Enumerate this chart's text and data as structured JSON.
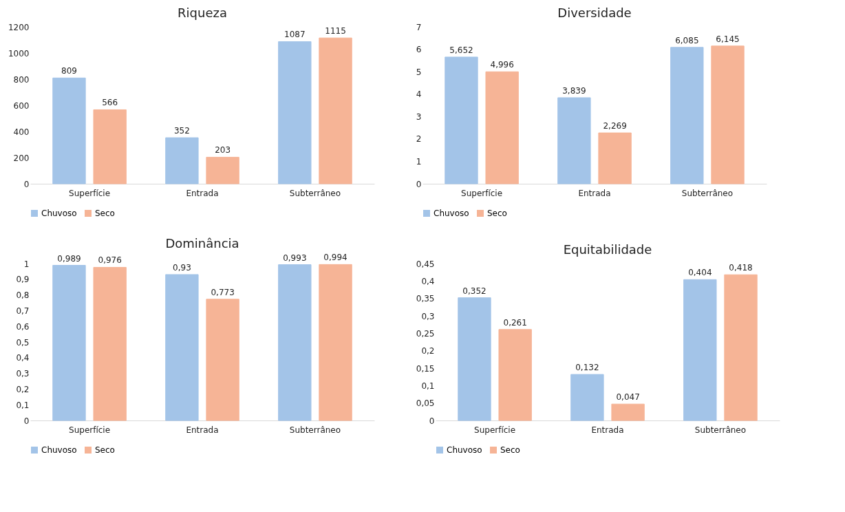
{
  "chart_data": [
    {
      "type": "bar",
      "title": "Riqueza",
      "categories": [
        "Superfície",
        "Entrada",
        "Subterrâneo"
      ],
      "ylim": [
        0,
        1200
      ],
      "yticks": [
        0,
        200,
        400,
        600,
        800,
        1000,
        1200
      ],
      "legend": "bottom",
      "series": [
        {
          "name": "Chuvoso",
          "color": "#a3c4e8",
          "values": [
            809,
            352,
            1087
          ],
          "value_labels": [
            "809",
            "352",
            "1087"
          ]
        },
        {
          "name": "Seco",
          "color": "#f6b496",
          "values": [
            566,
            203,
            1115
          ],
          "value_labels": [
            "566",
            "203",
            "1115"
          ]
        }
      ]
    },
    {
      "type": "bar",
      "title": "Diversidade",
      "categories": [
        "Superfície",
        "Entrada",
        "Subterrâneo"
      ],
      "ylim": [
        0,
        7
      ],
      "yticks": [
        0,
        1,
        2,
        3,
        4,
        5,
        6,
        7
      ],
      "legend": "bottom",
      "series": [
        {
          "name": "Chuvoso",
          "color": "#a3c4e8",
          "values": [
            5.652,
            3.839,
            6.085
          ],
          "value_labels": [
            "5,652",
            "3,839",
            "6,085"
          ]
        },
        {
          "name": "Seco",
          "color": "#f6b496",
          "values": [
            4.996,
            2.269,
            6.145
          ],
          "value_labels": [
            "4,996",
            "2,269",
            "6,145"
          ]
        }
      ]
    },
    {
      "type": "bar",
      "title": "Dominância",
      "categories": [
        "Superfície",
        "Entrada",
        "Subterrâneo"
      ],
      "ylim": [
        0,
        1
      ],
      "yticks": [
        0,
        {
          "value": 0.1,
          "label": "0,1"
        },
        {
          "value": 0.2,
          "label": "0,2"
        },
        {
          "value": 0.3,
          "label": "0,3"
        },
        {
          "value": 0.4,
          "label": "0,4"
        },
        {
          "value": 0.5,
          "label": "0,5"
        },
        {
          "value": 0.6,
          "label": "0,6"
        },
        {
          "value": 0.7,
          "label": "0,7"
        },
        {
          "value": 0.8,
          "label": "0,8"
        },
        {
          "value": 0.9,
          "label": "0,9"
        },
        1
      ],
      "legend": "bottom",
      "series": [
        {
          "name": "Chuvoso",
          "color": "#a3c4e8",
          "values": [
            0.989,
            0.93,
            0.993
          ],
          "value_labels": [
            "0,989",
            "0,93",
            "0,993"
          ]
        },
        {
          "name": "Seco",
          "color": "#f6b496",
          "values": [
            0.976,
            0.773,
            0.994
          ],
          "value_labels": [
            "0,976",
            "0,773",
            "0,994"
          ]
        }
      ]
    },
    {
      "type": "bar",
      "title": "Equitabilidade",
      "categories": [
        "Superfície",
        "Entrada",
        "Subterrâneo"
      ],
      "ylim": [
        0,
        0.45
      ],
      "yticks": [
        0,
        {
          "value": 0.05,
          "label": "0,05"
        },
        {
          "value": 0.1,
          "label": "0,1"
        },
        {
          "value": 0.15,
          "label": "0,15"
        },
        {
          "value": 0.2,
          "label": "0,2"
        },
        {
          "value": 0.25,
          "label": "0,25"
        },
        {
          "value": 0.3,
          "label": "0,3"
        },
        {
          "value": 0.35,
          "label": "0,35"
        },
        {
          "value": 0.4,
          "label": "0,4"
        },
        {
          "value": 0.45,
          "label": "0,45"
        }
      ],
      "legend": "bottom",
      "series": [
        {
          "name": "Chuvoso",
          "color": "#a3c4e8",
          "values": [
            0.352,
            0.132,
            0.404
          ],
          "value_labels": [
            "0,352",
            "0,132",
            "0,404"
          ]
        },
        {
          "name": "Seco",
          "color": "#f6b496",
          "values": [
            0.261,
            0.047,
            0.418
          ],
          "value_labels": [
            "0,261",
            "0,047",
            "0,418"
          ]
        }
      ]
    }
  ]
}
